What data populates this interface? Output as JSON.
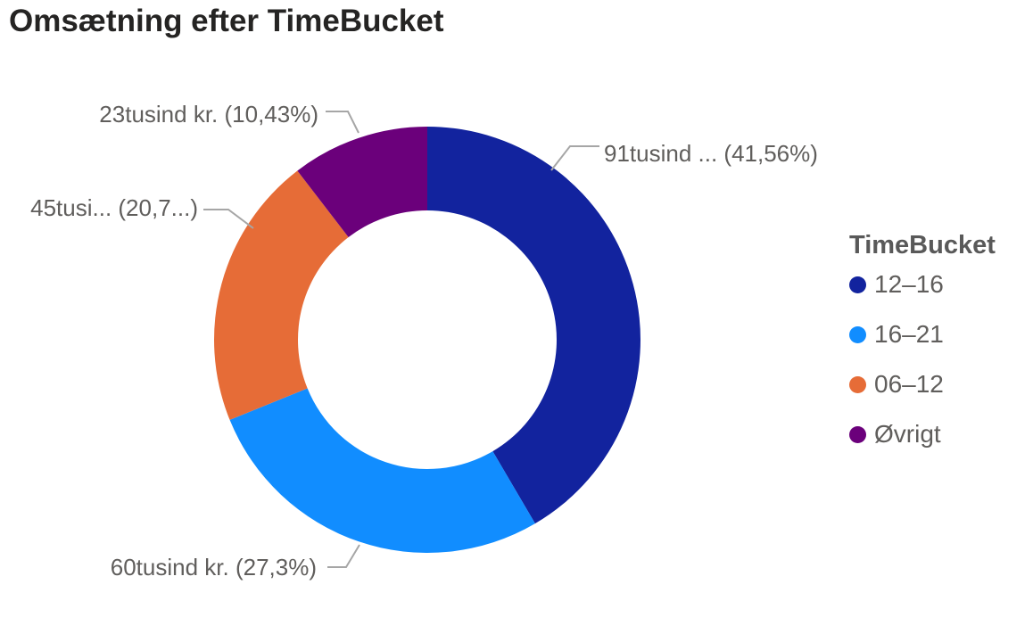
{
  "title": "Omsætning efter TimeBucket",
  "chart_data": {
    "type": "pie",
    "variant": "donut",
    "title": "Omsætning efter TimeBucket",
    "legend_title": "TimeBucket",
    "legend_position": "right",
    "value_unit": "tusind kr.",
    "number_locale": "da-DK",
    "slices": [
      {
        "label": "12–16",
        "value_tusind_kr": 91,
        "pct": 41.56,
        "color": "#12239E",
        "data_label": "91tusind ... (41,56%)"
      },
      {
        "label": "16–21",
        "value_tusind_kr": 60,
        "pct": 27.3,
        "color": "#118DFF",
        "data_label": "60tusind kr. (27,3%)"
      },
      {
        "label": "06–12",
        "value_tusind_kr": 45,
        "pct": 20.71,
        "color": "#E66C37",
        "data_label": "45tusi... (20,7...)"
      },
      {
        "label": "Øvrigt",
        "value_tusind_kr": 23,
        "pct": 10.43,
        "color": "#6B007B",
        "data_label": "23tusind kr. (10,43%)"
      }
    ],
    "leader_line_color": "#A6A6A6",
    "label_color": "#605E5C",
    "title_color": "#252423"
  }
}
